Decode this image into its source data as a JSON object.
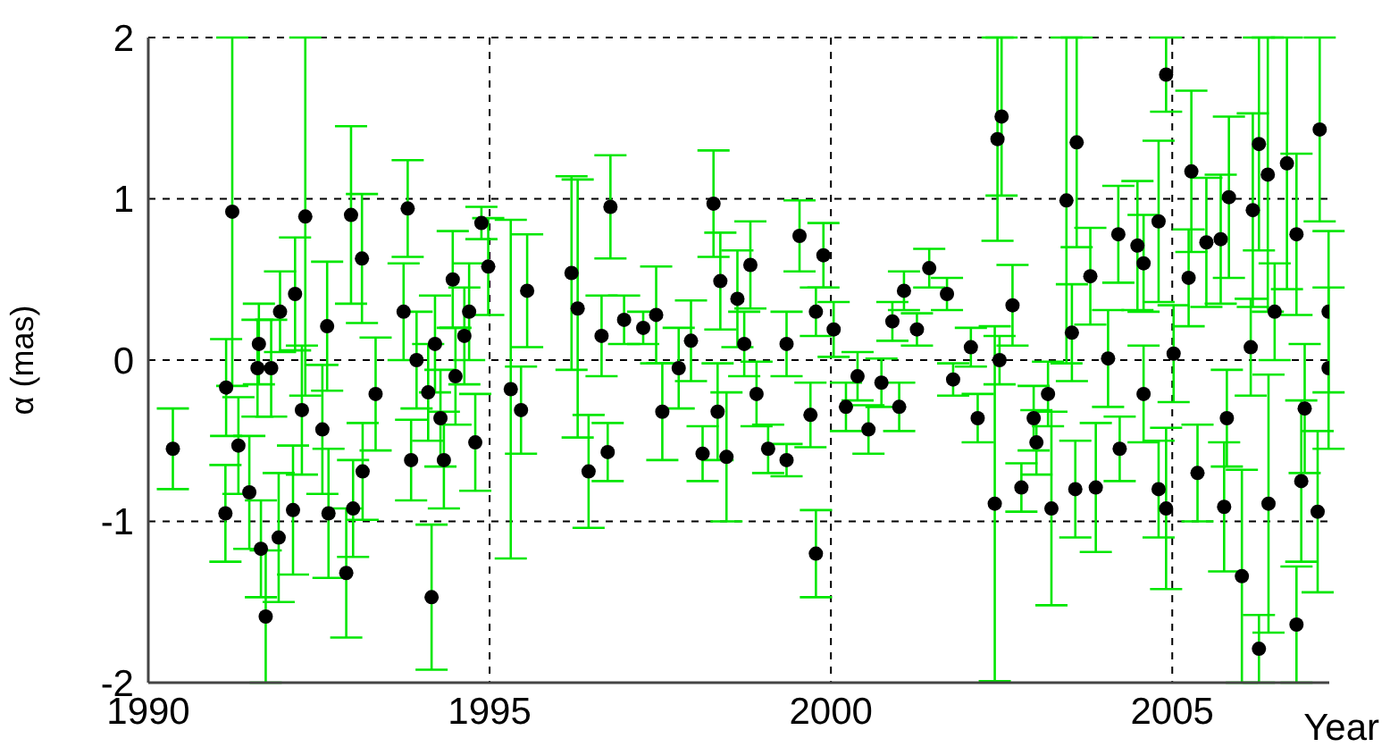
{
  "chart_data": {
    "type": "scatter",
    "xlabel": "Year",
    "ylabel": "α (mas)",
    "xlim": [
      1990,
      2007.3
    ],
    "ylim": [
      -2,
      2
    ],
    "xticks": [
      1990,
      1995,
      2000,
      2005
    ],
    "yticks": [
      -2,
      -1,
      0,
      1,
      2
    ],
    "grid": true,
    "legend": false,
    "marker": "circle",
    "series": [
      {
        "color": "#000000",
        "x": [
          1990.36,
          1991.13,
          1991.14,
          1991.23,
          1991.32,
          1991.48,
          1991.6,
          1991.62,
          1991.65,
          1991.72,
          1991.8,
          1991.91,
          1991.93,
          1992.12,
          1992.15,
          1992.25,
          1992.3,
          1992.55,
          1992.62,
          1992.64,
          1992.9,
          1992.97,
          1993.0,
          1993.13,
          1993.14,
          1993.33,
          1993.74,
          1993.8,
          1993.85,
          1993.93,
          1994.1,
          1994.15,
          1994.2,
          1994.28,
          1994.33,
          1994.46,
          1994.5,
          1994.63,
          1994.7,
          1994.79,
          1994.88,
          1994.98,
          1995.31,
          1995.46,
          1995.55,
          1996.2,
          1996.29,
          1996.45,
          1996.64,
          1996.73,
          1996.77,
          1996.97,
          1997.25,
          1997.44,
          1997.53,
          1997.77,
          1997.95,
          1998.12,
          1998.28,
          1998.34,
          1998.38,
          1998.47,
          1998.63,
          1998.73,
          1998.82,
          1998.91,
          1999.08,
          1999.35,
          1999.35,
          1999.54,
          1999.7,
          1999.78,
          1999.78,
          1999.89,
          2000.04,
          2000.22,
          2000.39,
          2000.55,
          2000.74,
          2000.9,
          2001.0,
          2001.07,
          2001.26,
          2001.44,
          2001.7,
          2001.79,
          2002.05,
          2002.15,
          2002.4,
          2002.44,
          2002.47,
          2002.5,
          2002.66,
          2002.79,
          2002.97,
          2003.01,
          2003.18,
          2003.23,
          2003.45,
          2003.53,
          2003.58,
          2003.6,
          2003.8,
          2003.88,
          2004.06,
          2004.21,
          2004.23,
          2004.49,
          2004.58,
          2004.58,
          2004.8,
          2004.8,
          2004.91,
          2004.91,
          2005.02,
          2005.24,
          2005.28,
          2005.37,
          2005.5,
          2005.71,
          2005.76,
          2005.8,
          2005.83,
          2006.02,
          2006.15,
          2006.18,
          2006.27,
          2006.27,
          2006.4,
          2006.41,
          2006.5,
          2006.68,
          2006.82,
          2006.82,
          2006.89,
          2006.94,
          2007.13,
          2007.16,
          2007.29,
          2007.29
        ],
        "values": [
          -0.55,
          -0.95,
          -0.17,
          0.92,
          -0.53,
          -0.82,
          -0.05,
          0.1,
          -1.17,
          -1.59,
          -0.05,
          -1.1,
          0.3,
          -0.93,
          0.41,
          -0.31,
          0.89,
          -0.43,
          0.21,
          -0.95,
          -1.32,
          0.9,
          -0.92,
          0.63,
          -0.69,
          -0.21,
          0.3,
          0.94,
          -0.62,
          0.0,
          -0.2,
          -1.47,
          0.1,
          -0.36,
          -0.62,
          0.5,
          -0.1,
          0.15,
          0.3,
          -0.51,
          0.85,
          0.58,
          -0.18,
          -0.31,
          0.43,
          0.54,
          0.32,
          -0.69,
          0.15,
          -0.57,
          0.95,
          0.25,
          0.2,
          0.28,
          -0.32,
          -0.05,
          0.12,
          -0.58,
          0.97,
          -0.32,
          0.49,
          -0.6,
          0.38,
          0.1,
          0.59,
          -0.21,
          -0.55,
          -0.62,
          0.1,
          0.77,
          -0.34,
          -1.2,
          0.3,
          0.65,
          0.19,
          -0.29,
          -0.1,
          -0.43,
          -0.14,
          0.24,
          -0.29,
          0.43,
          0.19,
          0.57,
          0.41,
          -0.12,
          0.08,
          -0.36,
          -0.89,
          1.37,
          0.0,
          1.51,
          0.34,
          -0.79,
          -0.36,
          -0.51,
          -0.21,
          -0.92,
          0.99,
          0.17,
          -0.8,
          1.35,
          0.52,
          -0.79,
          0.01,
          0.78,
          -0.55,
          0.71,
          0.6,
          -0.21,
          0.86,
          -0.8,
          1.77,
          -0.92,
          0.04,
          0.51,
          1.17,
          -0.7,
          0.73,
          0.75,
          -0.91,
          -0.36,
          1.01,
          -1.34,
          0.08,
          0.93,
          1.34,
          -1.79,
          1.15,
          -0.89,
          0.3,
          1.22,
          -1.64,
          0.78,
          -0.75,
          -0.3,
          -0.94,
          1.43,
          -0.05,
          0.3
        ],
        "errors": [
          0.25,
          0.3,
          0.3,
          1.08,
          0.3,
          0.35,
          0.3,
          0.25,
          0.3,
          0.41,
          0.3,
          0.4,
          0.25,
          0.4,
          0.35,
          0.4,
          1.11,
          0.4,
          0.4,
          0.4,
          0.4,
          0.55,
          0.3,
          0.4,
          0.3,
          0.35,
          0.3,
          0.3,
          0.25,
          0.3,
          0.3,
          0.45,
          0.3,
          0.3,
          0.3,
          0.3,
          0.3,
          0.3,
          0.3,
          0.3,
          0.1,
          0.3,
          1.05,
          0.27,
          0.35,
          0.6,
          0.8,
          0.35,
          0.25,
          0.18,
          0.32,
          0.15,
          0.1,
          0.3,
          0.3,
          0.25,
          0.25,
          0.17,
          0.33,
          0.3,
          0.3,
          0.4,
          0.3,
          0.2,
          0.27,
          0.2,
          0.15,
          0.1,
          0.2,
          0.22,
          0.2,
          0.27,
          0.15,
          0.2,
          0.17,
          0.15,
          0.15,
          0.15,
          0.15,
          0.12,
          0.15,
          0.12,
          0.1,
          0.12,
          0.1,
          0.1,
          0.12,
          0.15,
          1.1,
          0.63,
          0.15,
          0.49,
          0.25,
          0.15,
          0.2,
          0.2,
          0.2,
          0.6,
          1.01,
          0.3,
          0.3,
          0.65,
          0.3,
          0.4,
          0.3,
          0.3,
          0.2,
          0.4,
          0.3,
          0.3,
          0.5,
          0.3,
          0.23,
          0.5,
          0.3,
          0.3,
          0.5,
          0.3,
          0.4,
          0.4,
          0.4,
          0.3,
          0.5,
          0.66,
          0.3,
          0.6,
          0.66,
          0.21,
          0.85,
          0.8,
          0.3,
          0.78,
          0.36,
          0.5,
          0.5,
          0.4,
          0.5,
          0.57,
          0.5,
          0.5
        ]
      }
    ]
  }
}
